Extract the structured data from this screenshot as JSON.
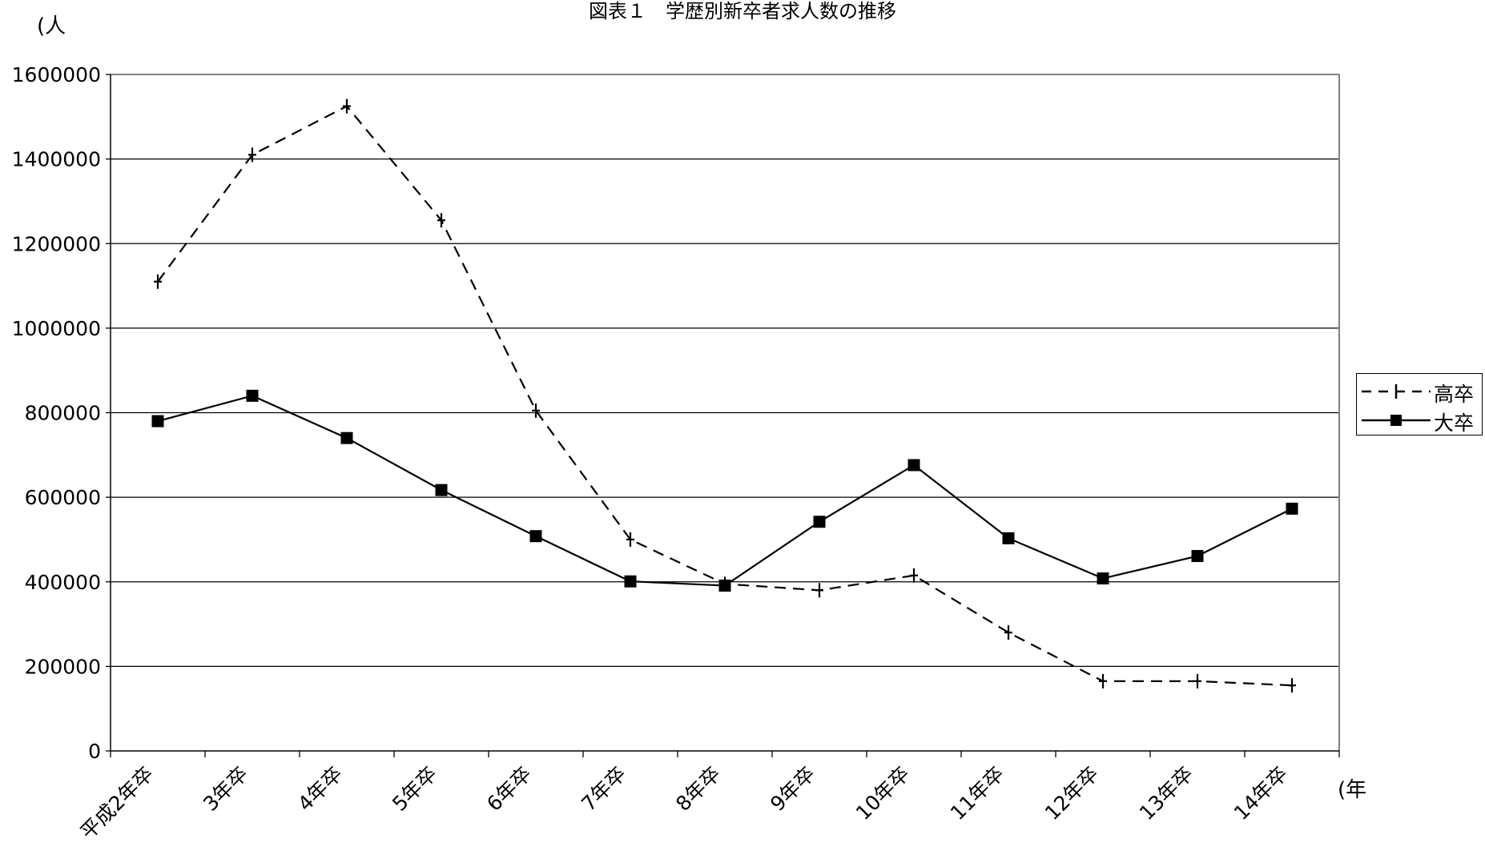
{
  "chart_data": {
    "type": "line",
    "title": "図表１　学歴別新卒者求人数の推移",
    "ylabel": "(人",
    "xlabel": "(年",
    "ylim": [
      0,
      1600000
    ],
    "yticks": [
      0,
      200000,
      400000,
      600000,
      800000,
      1000000,
      1200000,
      1400000,
      1600000
    ],
    "ytick_labels": [
      "0",
      "200000",
      "400000",
      "600000",
      "800000",
      "1000000",
      "1200000",
      "1400000",
      "1600000"
    ],
    "categories": [
      "平成2年卒",
      "3年卒",
      "4年卒",
      "5年卒",
      "6年卒",
      "7年卒",
      "8年卒",
      "9年卒",
      "10年卒",
      "11年卒",
      "12年卒",
      "13年卒",
      "14年卒"
    ],
    "grid": true,
    "legend_position": "right",
    "series": [
      {
        "name": "高卒",
        "style": "dashed",
        "marker": "plus",
        "color": "#000000",
        "values": [
          1110000,
          1410000,
          1525000,
          1255000,
          805000,
          500000,
          395000,
          380000,
          415000,
          280000,
          165000,
          165000,
          155000
        ]
      },
      {
        "name": "大卒",
        "style": "solid",
        "marker": "square",
        "color": "#000000",
        "values": [
          780000,
          840000,
          740000,
          617000,
          508000,
          401000,
          391000,
          542000,
          676000,
          503000,
          408000,
          461000,
          573000
        ]
      }
    ]
  }
}
